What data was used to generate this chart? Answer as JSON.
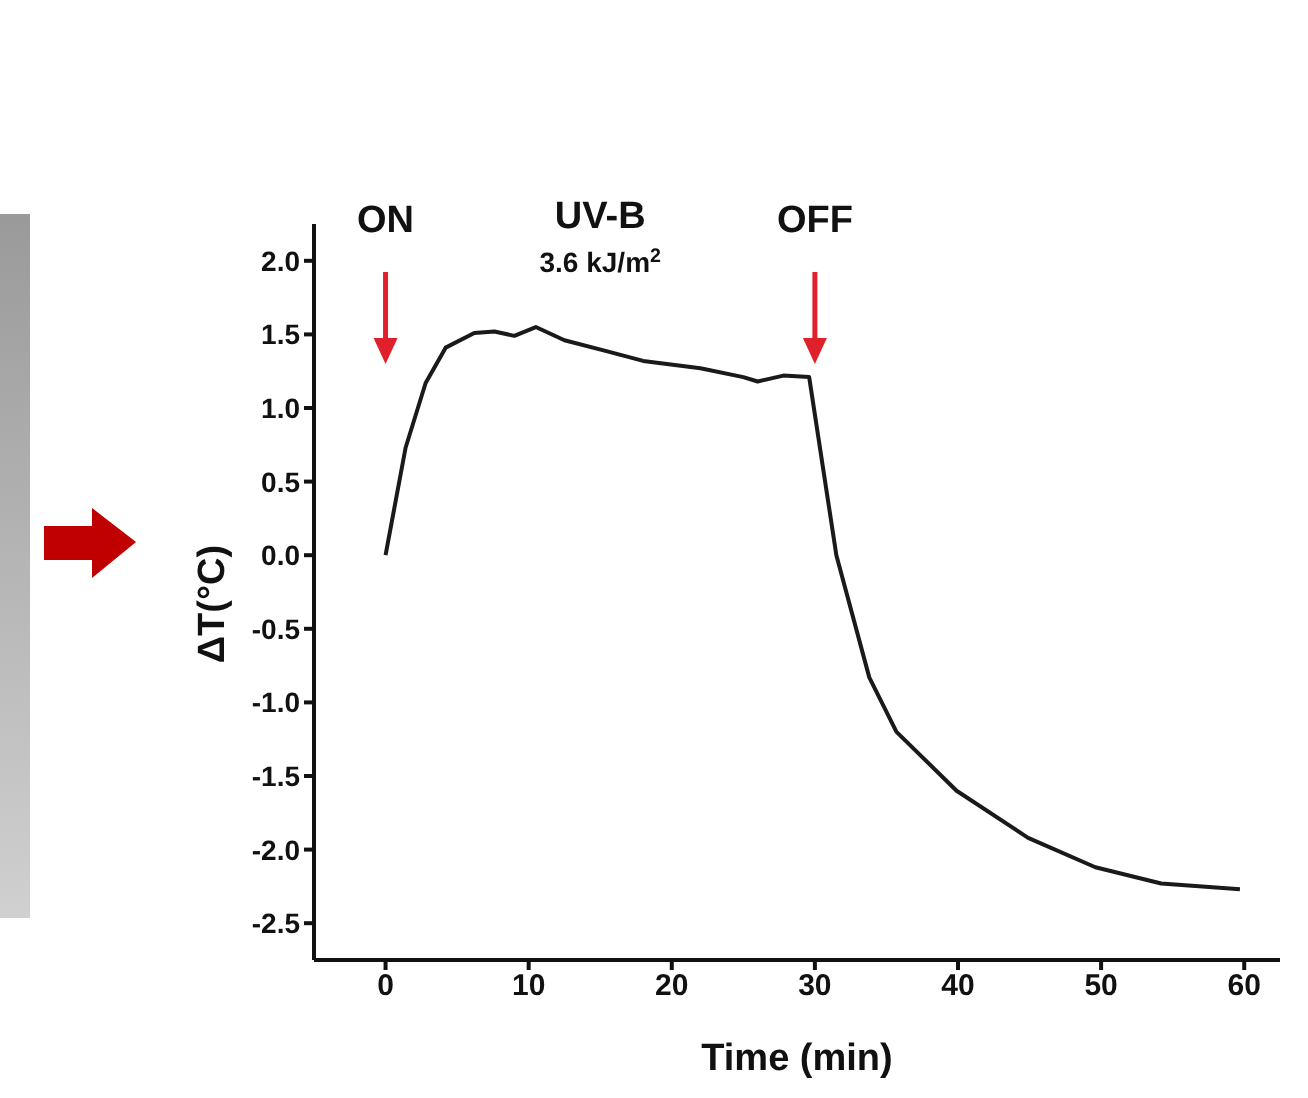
{
  "chart_data": {
    "type": "line",
    "xlabel": "Time (min)",
    "ylabel": "ΔT(°C)",
    "xlim": [
      -5,
      62.5
    ],
    "xticks": [
      0,
      10,
      20,
      30,
      40,
      50,
      60
    ],
    "ylim": [
      -2.75,
      2.25
    ],
    "yticks": [
      {
        "value": -2.5,
        "label": "-2.5"
      },
      {
        "value": -2,
        "label": "-2.0"
      },
      {
        "value": -1.5,
        "label": "-1.5"
      },
      {
        "value": -1,
        "label": "-1.0"
      },
      {
        "value": -0.5,
        "label": "-0.5"
      },
      {
        "value": 0,
        "label": "0.0"
      },
      {
        "value": 0.5,
        "label": "0.5"
      },
      {
        "value": 1,
        "label": "1.0"
      },
      {
        "value": 1.5,
        "label": "1.5"
      },
      {
        "value": 2,
        "label": "2.0"
      }
    ],
    "marker": "none",
    "line_style": "solid",
    "series": [
      {
        "color": "#1a1a1a",
        "x": [
          0,
          1.4,
          2.8,
          4.2,
          6.2,
          7.6,
          9,
          10.5,
          12.5,
          15.3,
          18,
          22,
          25,
          26,
          27.8,
          29.6,
          31.5,
          33.8,
          35.7,
          39.9,
          44.9,
          49.6,
          54.2,
          59.7
        ],
        "values": [
          0,
          0.73,
          1.17,
          1.41,
          1.51,
          1.52,
          1.49,
          1.55,
          1.46,
          1.39,
          1.32,
          1.27,
          1.21,
          1.18,
          1.22,
          1.21,
          0,
          -0.83,
          -1.2,
          -1.6,
          -1.92,
          -2.12,
          -2.23,
          -2.27
        ]
      }
    ],
    "annotations": [
      {
        "text": "ON",
        "x": 0
      },
      {
        "text": "OFF",
        "x": 30
      },
      "UV-B",
      "3.6 kJ/m$^{2}$"
    ]
  }
}
